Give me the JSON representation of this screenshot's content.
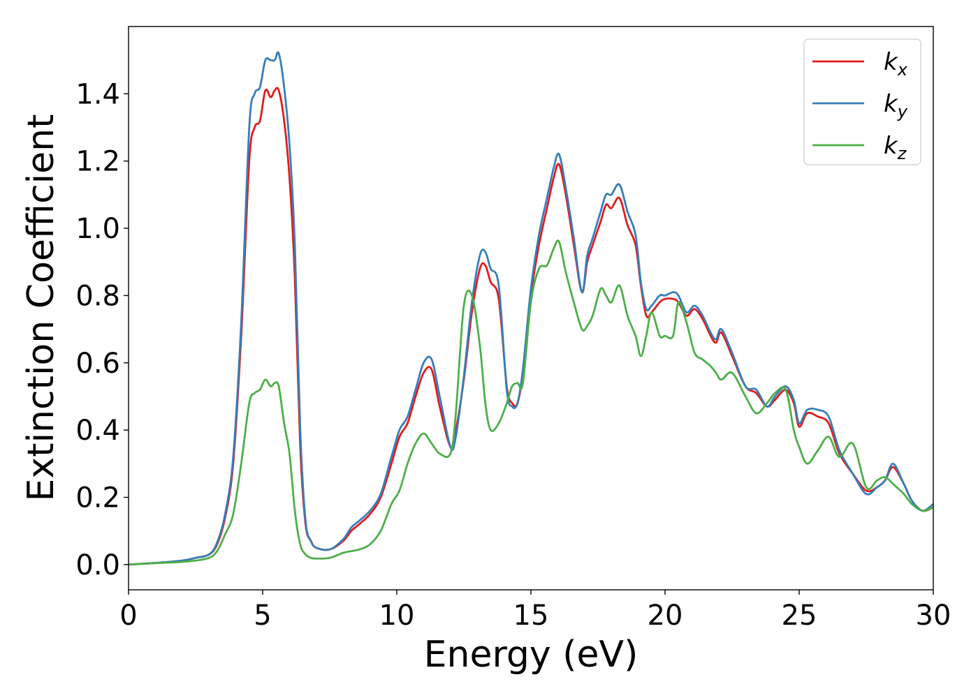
{
  "chart_data": {
    "type": "line",
    "xlabel": "Energy (eV)",
    "ylabel": "Extinction Coefficient",
    "xlim": [
      0,
      30
    ],
    "ylim": [
      -0.075,
      1.6
    ],
    "xticks": [
      0,
      5,
      10,
      15,
      20,
      25,
      30
    ],
    "xtick_labels": [
      "0",
      "5",
      "10",
      "15",
      "20",
      "25",
      "30"
    ],
    "yticks": [
      0.0,
      0.2,
      0.4,
      0.6,
      0.8,
      1.0,
      1.2,
      1.4
    ],
    "ytick_labels": [
      "0.0",
      "0.2",
      "0.4",
      "0.6",
      "0.8",
      "1.0",
      "1.2",
      "1.4"
    ],
    "grid": false,
    "legend_position": "top-right",
    "series": [
      {
        "name": "k_x",
        "label_main": "k",
        "label_sub": "x",
        "color": "#e41a1c",
        "x": [
          0,
          1,
          2,
          2.5,
          3,
          3.3,
          3.6,
          3.9,
          4.2,
          4.5,
          4.7,
          4.9,
          5.1,
          5.3,
          5.45,
          5.6,
          5.8,
          6.0,
          6.2,
          6.4,
          6.6,
          6.8,
          7.0,
          7.5,
          8.0,
          8.3,
          8.6,
          9.0,
          9.4,
          9.8,
          10.1,
          10.4,
          10.7,
          11.0,
          11.3,
          11.6,
          12.0,
          12.2,
          12.5,
          12.8,
          13.1,
          13.3,
          13.5,
          13.8,
          14.1,
          14.3,
          14.5,
          14.7,
          15.0,
          15.3,
          15.6,
          15.85,
          16.05,
          16.3,
          16.6,
          16.9,
          17.1,
          17.3,
          17.6,
          17.8,
          18.0,
          18.3,
          18.6,
          18.9,
          19.1,
          19.3,
          19.5,
          19.8,
          20.0,
          20.3,
          20.5,
          20.8,
          21.1,
          21.4,
          21.7,
          21.9,
          22.1,
          22.5,
          23.0,
          23.4,
          23.8,
          24.1,
          24.5,
          24.8,
          25.0,
          25.3,
          25.7,
          26.1,
          26.5,
          27.0,
          27.5,
          27.9,
          28.2,
          28.5,
          28.9,
          29.2,
          29.6,
          30.0
        ],
        "values": [
          0.0,
          0.005,
          0.012,
          0.02,
          0.03,
          0.06,
          0.14,
          0.3,
          0.68,
          1.2,
          1.3,
          1.32,
          1.41,
          1.39,
          1.41,
          1.41,
          1.32,
          1.15,
          0.85,
          0.35,
          0.12,
          0.07,
          0.05,
          0.045,
          0.07,
          0.1,
          0.12,
          0.15,
          0.2,
          0.3,
          0.38,
          0.42,
          0.5,
          0.57,
          0.58,
          0.47,
          0.35,
          0.4,
          0.55,
          0.75,
          0.88,
          0.89,
          0.84,
          0.79,
          0.53,
          0.48,
          0.48,
          0.57,
          0.8,
          0.95,
          1.06,
          1.15,
          1.19,
          1.1,
          0.95,
          0.81,
          0.9,
          0.95,
          1.02,
          1.07,
          1.06,
          1.09,
          1.01,
          0.95,
          0.83,
          0.74,
          0.75,
          0.78,
          0.79,
          0.79,
          0.78,
          0.74,
          0.76,
          0.73,
          0.68,
          0.66,
          0.69,
          0.62,
          0.53,
          0.51,
          0.47,
          0.49,
          0.52,
          0.48,
          0.41,
          0.45,
          0.44,
          0.42,
          0.33,
          0.27,
          0.22,
          0.23,
          0.25,
          0.29,
          0.24,
          0.19,
          0.16,
          0.17
        ]
      },
      {
        "name": "k_y",
        "label_main": "k",
        "label_sub": "y",
        "color": "#377eb8",
        "x": [
          0,
          1,
          2,
          2.5,
          3,
          3.3,
          3.6,
          3.9,
          4.2,
          4.5,
          4.7,
          4.9,
          5.1,
          5.3,
          5.45,
          5.6,
          5.8,
          6.0,
          6.2,
          6.4,
          6.6,
          6.8,
          7.0,
          7.5,
          8.0,
          8.3,
          8.6,
          9.0,
          9.4,
          9.8,
          10.1,
          10.4,
          10.7,
          11.0,
          11.3,
          11.6,
          12.0,
          12.2,
          12.5,
          12.8,
          13.1,
          13.3,
          13.5,
          13.8,
          14.1,
          14.3,
          14.5,
          14.7,
          15.0,
          15.3,
          15.6,
          15.85,
          16.05,
          16.3,
          16.6,
          16.9,
          17.1,
          17.3,
          17.6,
          17.8,
          18.0,
          18.3,
          18.6,
          18.9,
          19.1,
          19.3,
          19.5,
          19.8,
          20.0,
          20.3,
          20.5,
          20.8,
          21.1,
          21.4,
          21.7,
          21.9,
          22.1,
          22.5,
          23.0,
          23.4,
          23.8,
          24.1,
          24.5,
          24.8,
          25.0,
          25.3,
          25.7,
          26.1,
          26.5,
          27.0,
          27.5,
          27.9,
          28.2,
          28.5,
          28.9,
          29.2,
          29.6,
          30.0
        ],
        "values": [
          0.0,
          0.005,
          0.012,
          0.02,
          0.03,
          0.065,
          0.15,
          0.32,
          0.72,
          1.3,
          1.4,
          1.42,
          1.5,
          1.5,
          1.5,
          1.52,
          1.42,
          1.25,
          0.95,
          0.4,
          0.13,
          0.07,
          0.05,
          0.045,
          0.075,
          0.11,
          0.13,
          0.16,
          0.21,
          0.32,
          0.4,
          0.44,
          0.52,
          0.6,
          0.61,
          0.5,
          0.35,
          0.38,
          0.56,
          0.78,
          0.92,
          0.93,
          0.88,
          0.83,
          0.52,
          0.47,
          0.48,
          0.58,
          0.82,
          0.98,
          1.09,
          1.18,
          1.22,
          1.12,
          0.97,
          0.81,
          0.92,
          0.97,
          1.05,
          1.1,
          1.1,
          1.13,
          1.05,
          0.98,
          0.84,
          0.76,
          0.77,
          0.8,
          0.8,
          0.81,
          0.8,
          0.75,
          0.77,
          0.74,
          0.69,
          0.67,
          0.7,
          0.63,
          0.53,
          0.52,
          0.47,
          0.5,
          0.53,
          0.49,
          0.42,
          0.46,
          0.46,
          0.44,
          0.34,
          0.27,
          0.21,
          0.23,
          0.25,
          0.3,
          0.24,
          0.19,
          0.16,
          0.18
        ]
      },
      {
        "name": "k_z",
        "label_main": "k",
        "label_sub": "z",
        "color": "#4daf4a",
        "x": [
          0,
          1,
          2,
          2.5,
          3,
          3.3,
          3.6,
          3.9,
          4.2,
          4.5,
          4.7,
          4.9,
          5.1,
          5.3,
          5.45,
          5.6,
          5.8,
          6.0,
          6.2,
          6.4,
          6.6,
          6.8,
          7.0,
          7.5,
          8.0,
          8.3,
          8.6,
          9.0,
          9.4,
          9.8,
          10.1,
          10.4,
          10.7,
          11.0,
          11.3,
          11.6,
          12.0,
          12.2,
          12.5,
          12.8,
          13.1,
          13.3,
          13.5,
          13.8,
          14.1,
          14.3,
          14.5,
          14.7,
          15.0,
          15.3,
          15.6,
          15.85,
          16.05,
          16.3,
          16.6,
          16.9,
          17.1,
          17.3,
          17.6,
          17.8,
          18.0,
          18.3,
          18.6,
          18.9,
          19.1,
          19.3,
          19.5,
          19.8,
          20.0,
          20.3,
          20.5,
          20.8,
          21.1,
          21.4,
          21.7,
          21.9,
          22.1,
          22.5,
          23.0,
          23.4,
          23.8,
          24.1,
          24.5,
          24.8,
          25.0,
          25.3,
          25.7,
          26.1,
          26.5,
          27.0,
          27.5,
          27.9,
          28.2,
          28.5,
          28.9,
          29.2,
          29.6,
          30.0
        ],
        "values": [
          0.0,
          0.004,
          0.008,
          0.012,
          0.02,
          0.04,
          0.09,
          0.15,
          0.3,
          0.48,
          0.51,
          0.52,
          0.55,
          0.53,
          0.54,
          0.53,
          0.42,
          0.33,
          0.16,
          0.06,
          0.03,
          0.02,
          0.018,
          0.02,
          0.035,
          0.04,
          0.045,
          0.06,
          0.1,
          0.18,
          0.22,
          0.3,
          0.36,
          0.39,
          0.36,
          0.33,
          0.33,
          0.45,
          0.77,
          0.8,
          0.65,
          0.48,
          0.4,
          0.42,
          0.48,
          0.53,
          0.54,
          0.54,
          0.78,
          0.88,
          0.89,
          0.94,
          0.96,
          0.87,
          0.78,
          0.7,
          0.71,
          0.74,
          0.82,
          0.8,
          0.78,
          0.83,
          0.74,
          0.68,
          0.62,
          0.68,
          0.75,
          0.68,
          0.68,
          0.68,
          0.78,
          0.72,
          0.63,
          0.61,
          0.59,
          0.57,
          0.55,
          0.57,
          0.5,
          0.45,
          0.48,
          0.51,
          0.52,
          0.4,
          0.35,
          0.3,
          0.34,
          0.38,
          0.32,
          0.36,
          0.23,
          0.25,
          0.26,
          0.24,
          0.21,
          0.18,
          0.16,
          0.17
        ]
      }
    ]
  }
}
